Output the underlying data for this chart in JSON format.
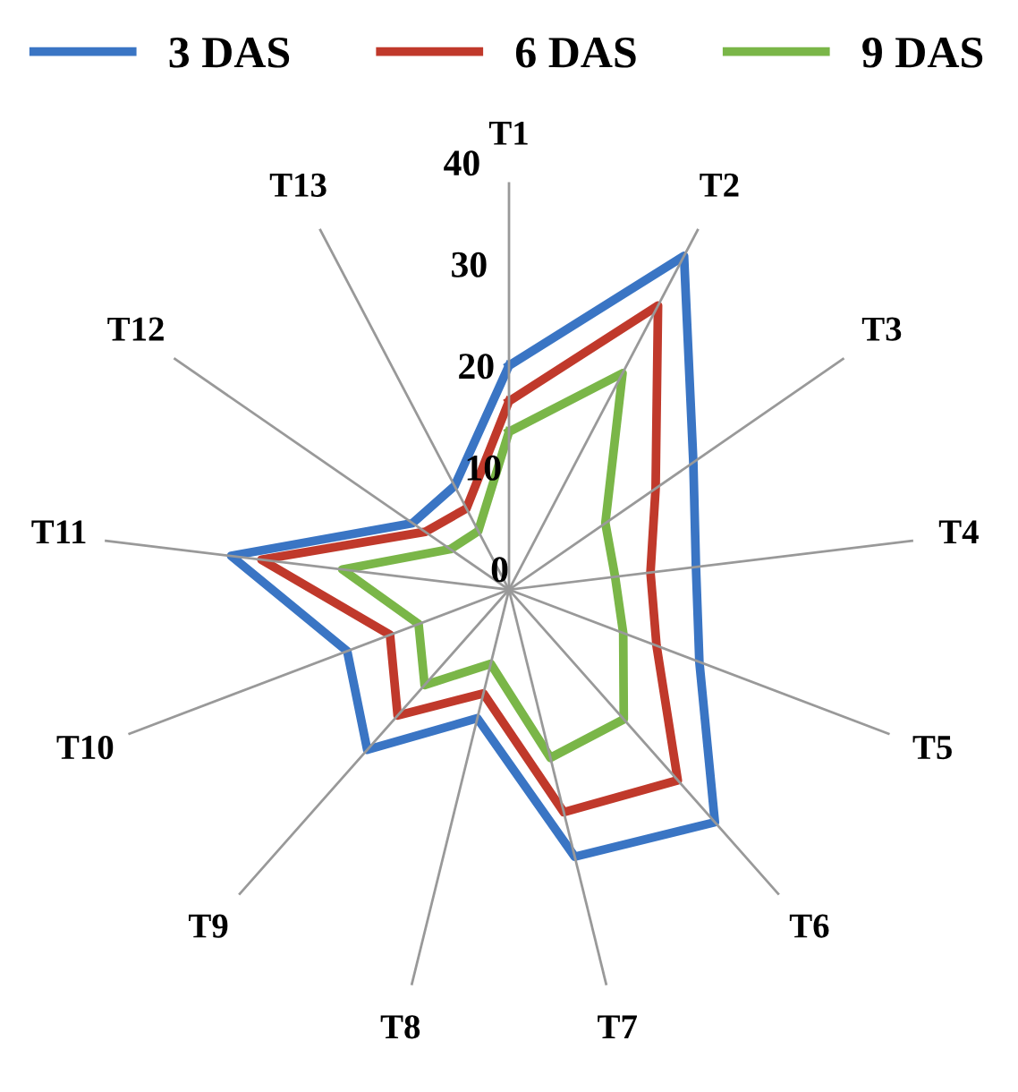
{
  "chart_data": {
    "type": "radar",
    "categories": [
      "T1",
      "T2",
      "T3",
      "T4",
      "T5",
      "T6",
      "T7",
      "T8",
      "T9",
      "T10",
      "T11",
      "T12",
      "T13"
    ],
    "series": [
      {
        "name": "3 DAS",
        "color": "#3a75c4",
        "values": [
          22,
          37,
          22,
          18.5,
          20,
          30.5,
          27,
          13,
          21,
          17,
          27.5,
          11.5,
          11.5
        ]
      },
      {
        "name": "6 DAS",
        "color": "#c0392b",
        "values": [
          18.5,
          31.5,
          17.5,
          14,
          15.5,
          25,
          22.5,
          10.5,
          16.5,
          12.5,
          24.5,
          10,
          9
        ]
      },
      {
        "name": "9 DAS",
        "color": "#7ab648",
        "values": [
          15.5,
          24,
          11.5,
          10.5,
          12,
          17,
          17,
          7.5,
          12.5,
          9.5,
          16.5,
          7,
          6.5
        ]
      }
    ],
    "ylim": [
      0,
      40
    ],
    "yticks": [
      0,
      10,
      20,
      30,
      40
    ],
    "grid": "x",
    "legend": "top",
    "line_style": "solid",
    "marker": "none"
  }
}
